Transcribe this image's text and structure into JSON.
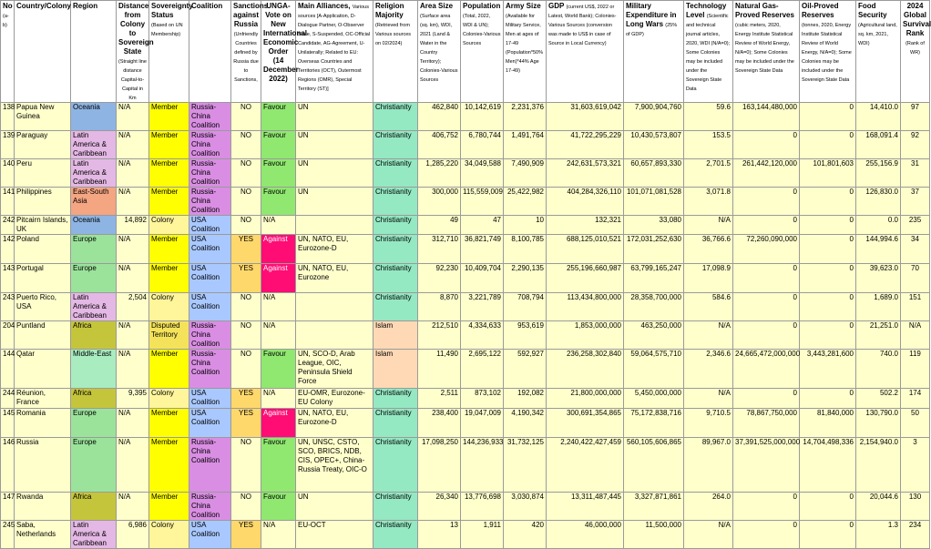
{
  "headers": [
    {
      "key": "no",
      "label": "No",
      "sub": "(a-b)"
    },
    {
      "key": "country",
      "label": "Country/Colony",
      "sub": ""
    },
    {
      "key": "region",
      "label": "Region",
      "sub": ""
    },
    {
      "key": "distance",
      "label": "Distance from Colony to Sovereign State",
      "sub": "(Straight line distance Capital-to-Capital in Km"
    },
    {
      "key": "sovereignty",
      "label": "Sovereignty Status",
      "sub": "(Based on UN Membership)"
    },
    {
      "key": "coalition",
      "label": "Coalition",
      "sub": ""
    },
    {
      "key": "sanctions",
      "label": "Sanctions against Russia",
      "sub": "(Unfriendly Countries defined by Russia due to Sanctions,"
    },
    {
      "key": "unga",
      "label": "UNGA-Vote on New International Economic Order (14 December 2022)",
      "sub": ""
    },
    {
      "key": "alliances",
      "label": "Main Alliances,",
      "sub": "Various sources [A-Application, D-Dialogue Partner, O-Observer State, S-Suspended, OC-Official Candidate, AG-Agreement, U-Unilaterally; Related to EU: Overseas Countries and Territories (OCT), Outermost Regions (OMR), Special Territory (ST)]"
    },
    {
      "key": "religion",
      "label": "Religion Majority",
      "sub": "(Retrieved from Various sources on 02/2024)"
    },
    {
      "key": "area",
      "label": "Area Size",
      "sub": "(Surface area (sq. km), WDI, 2021 (Land & Water in the Country Territory); Colonies-Various Sources"
    },
    {
      "key": "population",
      "label": "Population",
      "sub": "(Total, 2022, WDI & UN); Colonies-Various Sources"
    },
    {
      "key": "army",
      "label": "Army Size",
      "sub": "(Available for Military Service, Men at ages of 17-49 (Population*50% Men)*44% Age 17-49)"
    },
    {
      "key": "gdp",
      "label": "GDP",
      "sub": "(current US$, 2022 or Latest, World Bank); Colonies-Various Sources (conversion was made to US$ in case of Source in Local Currency)"
    },
    {
      "key": "military",
      "label": "Military Expenditure in Long Wars",
      "sub": "(25% of GDP)"
    },
    {
      "key": "tech",
      "label": "Technology Level",
      "sub": "(Scientific and technical journal articles, 2020, WDI (N/A=0); Some Colonies may be included under the Sovereign State Data"
    },
    {
      "key": "gas",
      "label": "Natural Gas-Proved Reserves",
      "sub": "(cubic meters, 2020, Energy Institute Statistical Review of World Energy, N/A=0); Some Colonies may be included under the Sovereign State Data"
    },
    {
      "key": "oil",
      "label": "Oil-Proved Reserves",
      "sub": "(tonnes, 2020, Energy Institute Statistical Review of World Energy, N/A=0); Some Colonies may be included under the Sovereign State Data"
    },
    {
      "key": "food",
      "label": "Food Security",
      "sub": "(Agricultural land, sq. km, 2021, WDI)"
    },
    {
      "key": "rank",
      "label": "2024 Global Survival Rank",
      "sub": "(Rank of WR)"
    }
  ],
  "rows": [
    {
      "no": "138",
      "country": "Papua New Guinea",
      "region": "Oceania",
      "distance": "N/A",
      "sovereignty": "Member",
      "coalition": "Russia-China Coalition",
      "sanctions": "NO",
      "unga": "Favour",
      "alliances": "UN",
      "religion": "Christianity",
      "area": "462,840",
      "population": "10,142,619",
      "army": "2,231,376",
      "gdp": "31,603,619,042",
      "military": "7,900,904,760",
      "tech": "59.6",
      "gas": "163,144,480,000",
      "oil": "0",
      "food": "14,410.0",
      "rank": "97"
    },
    {
      "no": "139",
      "country": "Paraguay",
      "region": "Latin America & Caribbean",
      "distance": "N/A",
      "sovereignty": "Member",
      "coalition": "Russia-China Coalition",
      "sanctions": "NO",
      "unga": "Favour",
      "alliances": "UN",
      "religion": "Christianity",
      "area": "406,752",
      "population": "6,780,744",
      "army": "1,491,764",
      "gdp": "41,722,295,229",
      "military": "10,430,573,807",
      "tech": "153.5",
      "gas": "0",
      "oil": "0",
      "food": "168,091.4",
      "rank": "92"
    },
    {
      "no": "140",
      "country": "Peru",
      "region": "Latin America & Caribbean",
      "distance": "N/A",
      "sovereignty": "Member",
      "coalition": "Russia-China Coalition",
      "sanctions": "NO",
      "unga": "Favour",
      "alliances": "UN",
      "religion": "Christianity",
      "area": "1,285,220",
      "population": "34,049,588",
      "army": "7,490,909",
      "gdp": "242,631,573,321",
      "military": "60,657,893,330",
      "tech": "2,701.5",
      "gas": "261,442,120,000",
      "oil": "101,801,603",
      "food": "255,156.9",
      "rank": "31"
    },
    {
      "no": "141",
      "country": "Philippines",
      "region": "East-South Asia",
      "distance": "N/A",
      "sovereignty": "Member",
      "coalition": "Russia-China Coalition",
      "sanctions": "NO",
      "unga": "Favour",
      "alliances": "UN",
      "religion": "Christianity",
      "area": "300,000",
      "population": "115,559,009",
      "army": "25,422,982",
      "gdp": "404,284,326,110",
      "military": "101,071,081,528",
      "tech": "3,071.8",
      "gas": "0",
      "oil": "0",
      "food": "126,830.0",
      "rank": "37"
    },
    {
      "no": "242",
      "country": "Pitcairn Islands, UK",
      "region": "Oceania",
      "distance": "14,892",
      "sovereignty": "Colony",
      "coalition": "USA Coalition",
      "sanctions": "NO",
      "unga": "N/A",
      "alliances": "",
      "religion": "Christianity",
      "area": "49",
      "population": "47",
      "army": "10",
      "gdp": "132,321",
      "military": "33,080",
      "tech": "N/A",
      "gas": "0",
      "oil": "0",
      "food": "0.0",
      "rank": "235"
    },
    {
      "no": "142",
      "country": "Poland",
      "region": "Europe",
      "distance": "N/A",
      "sovereignty": "Member",
      "coalition": "USA Coalition",
      "sanctions": "YES",
      "unga": "Against",
      "alliances": "UN, NATO, EU, Eurozone-D",
      "religion": "Christianity",
      "area": "312,710",
      "population": "36,821,749",
      "army": "8,100,785",
      "gdp": "688,125,010,521",
      "military": "172,031,252,630",
      "tech": "36,766.6",
      "gas": "72,260,090,000",
      "oil": "0",
      "food": "144,994.6",
      "rank": "34"
    },
    {
      "no": "143",
      "country": "Portugal",
      "region": "Europe",
      "distance": "N/A",
      "sovereignty": "Member",
      "coalition": "USA Coalition",
      "sanctions": "YES",
      "unga": "Against",
      "alliances": "UN, NATO, EU, Eurozone",
      "religion": "Christianity",
      "area": "92,230",
      "population": "10,409,704",
      "army": "2,290,135",
      "gdp": "255,196,660,987",
      "military": "63,799,165,247",
      "tech": "17,098.9",
      "gas": "0",
      "oil": "0",
      "food": "39,623.0",
      "rank": "70"
    },
    {
      "no": "243",
      "country": "Puerto Rico, USA",
      "region": "Latin America & Caribbean",
      "distance": "2,504",
      "sovereignty": "Colony",
      "coalition": "USA Coalition",
      "sanctions": "NO",
      "unga": "N/A",
      "alliances": "",
      "religion": "Christianity",
      "area": "8,870",
      "population": "3,221,789",
      "army": "708,794",
      "gdp": "113,434,800,000",
      "military": "28,358,700,000",
      "tech": "584.6",
      "gas": "0",
      "oil": "0",
      "food": "1,689.0",
      "rank": "151"
    },
    {
      "no": "204",
      "country": "Puntland",
      "region": "Africa",
      "distance": "N/A",
      "sovereignty": "Disputed Territory",
      "coalition": "Russia-China Coalition",
      "sanctions": "NO",
      "unga": "N/A",
      "alliances": "",
      "religion": "Islam",
      "area": "212,510",
      "population": "4,334,633",
      "army": "953,619",
      "gdp": "1,853,000,000",
      "military": "463,250,000",
      "tech": "N/A",
      "gas": "0",
      "oil": "0",
      "food": "21,251.0",
      "rank": "N/A"
    },
    {
      "no": "144",
      "country": "Qatar",
      "region": "Middle-East",
      "distance": "N/A",
      "sovereignty": "Member",
      "coalition": "Russia-China Coalition",
      "sanctions": "NO",
      "unga": "Favour",
      "alliances": "UN, SCO-D, Arab League, OIC, Peninsula Shield Force",
      "religion": "Islam",
      "area": "11,490",
      "population": "2,695,122",
      "army": "592,927",
      "gdp": "236,258,302,840",
      "military": "59,064,575,710",
      "tech": "2,346.6",
      "gas": "24,665,472,000,000",
      "oil": "3,443,281,600",
      "food": "740.0",
      "rank": "119"
    },
    {
      "no": "244",
      "country": "Réunion, France",
      "region": "Africa",
      "distance": "9,395",
      "sovereignty": "Colony",
      "coalition": "USA Coalition",
      "sanctions": "YES",
      "unga": "N/A",
      "alliances": "EU-OMR, Eurozone-EU Colony",
      "religion": "Christianity",
      "area": "2,511",
      "population": "873,102",
      "army": "192,082",
      "gdp": "21,800,000,000",
      "military": "5,450,000,000",
      "tech": "N/A",
      "gas": "0",
      "oil": "0",
      "food": "502.2",
      "rank": "174"
    },
    {
      "no": "145",
      "country": "Romania",
      "region": "Europe",
      "distance": "N/A",
      "sovereignty": "Member",
      "coalition": "USA Coalition",
      "sanctions": "YES",
      "unga": "Against",
      "alliances": "UN, NATO, EU, Eurozone-D",
      "religion": "Christianity",
      "area": "238,400",
      "population": "19,047,009",
      "army": "4,190,342",
      "gdp": "300,691,354,865",
      "military": "75,172,838,716",
      "tech": "9,710.5",
      "gas": "78,867,750,000",
      "oil": "81,840,000",
      "food": "130,790.0",
      "rank": "50"
    },
    {
      "no": "146",
      "country": "Russia",
      "region": "Europe",
      "distance": "N/A",
      "sovereignty": "Member",
      "coalition": "Russia-China Coalition",
      "sanctions": "NO",
      "unga": "Favour",
      "alliances": "UN, UNSC, CSTO, SCO, BRICS, NDB, CIS, OPEC+, China-Russia Treaty, OIC-O",
      "religion": "Christianity",
      "area": "17,098,250",
      "population": "144,236,933",
      "army": "31,732,125",
      "gdp": "2,240,422,427,459",
      "military": "560,105,606,865",
      "tech": "89,967.0",
      "gas": "37,391,525,000,000",
      "oil": "14,704,498,336",
      "food": "2,154,940.0",
      "rank": "3"
    },
    {
      "no": "147",
      "country": "Rwanda",
      "region": "Africa",
      "distance": "N/A",
      "sovereignty": "Member",
      "coalition": "Russia-China Coalition",
      "sanctions": "NO",
      "unga": "Favour",
      "alliances": "UN",
      "religion": "Christianity",
      "area": "26,340",
      "population": "13,776,698",
      "army": "3,030,874",
      "gdp": "13,311,487,445",
      "military": "3,327,871,861",
      "tech": "264.0",
      "gas": "0",
      "oil": "0",
      "food": "20,044.6",
      "rank": "130"
    },
    {
      "no": "245",
      "country": "Saba, Netherlands",
      "region": "Latin America & Caribbean",
      "distance": "6,986",
      "sovereignty": "Colony",
      "coalition": "USA Coalition",
      "sanctions": "YES",
      "unga": "N/A",
      "alliances": "EU-OCT",
      "religion": "Christianity",
      "area": "13",
      "population": "1,911",
      "army": "420",
      "gdp": "46,000,000",
      "military": "11,500,000",
      "tech": "N/A",
      "gas": "0",
      "oil": "0",
      "food": "1.3",
      "rank": "234"
    }
  ],
  "colors": {
    "Oceania": "#8eb4e3",
    "Latin America & Caribbean": "#e4b8e4",
    "East-South Asia": "#f4a582",
    "Europe": "#9be39b",
    "Africa": "#c5c53b",
    "Middle-East": "#a8ecc0",
    "Member": "#ffff00",
    "Colony": "#fff59a",
    "Disputed Territory": "#f4e35a",
    "Russia-China Coalition": "#d98ee3",
    "USA Coalition": "#a9c8ff",
    "YES": "#ffd86b",
    "Favour": "#90e870",
    "Against": "#ff0d74",
    "Christianity": "#94e8c2",
    "Islam": "#ffd9b5",
    "cream": "#ffffcc"
  }
}
